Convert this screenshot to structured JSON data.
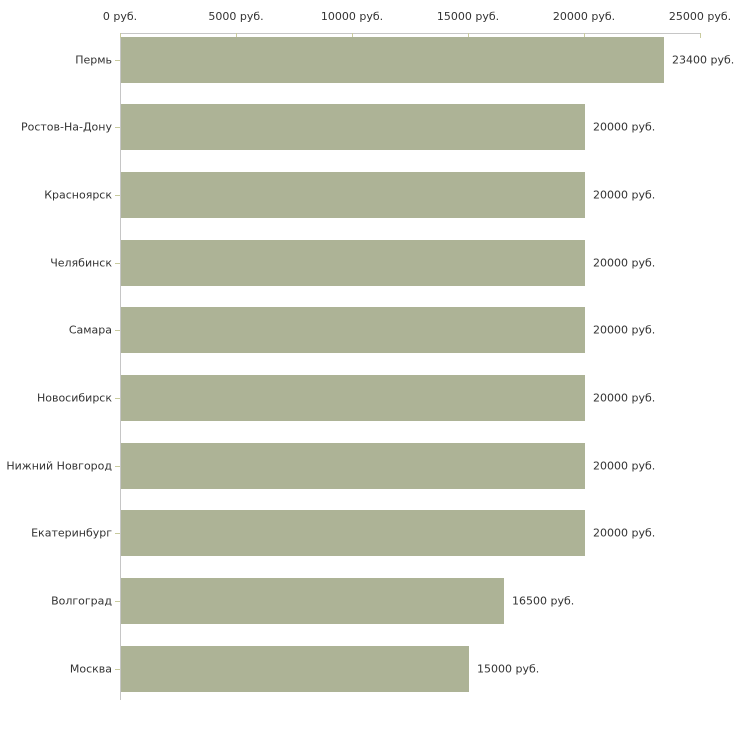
{
  "chart_data": {
    "type": "bar",
    "orientation": "horizontal",
    "title": "",
    "xlabel": "",
    "ylabel": "",
    "unit": "руб.",
    "categories": [
      "Пермь",
      "Ростов-На-Дону",
      "Красноярск",
      "Челябинск",
      "Самара",
      "Новосибирск",
      "Нижний Новгород",
      "Екатеринбург",
      "Волгоград",
      "Москва"
    ],
    "values": [
      23400,
      20000,
      20000,
      20000,
      20000,
      20000,
      20000,
      20000,
      16500,
      15000
    ],
    "value_labels": [
      "23400 руб.",
      "20000 руб.",
      "20000 руб.",
      "20000 руб.",
      "20000 руб.",
      "20000 руб.",
      "20000 руб.",
      "20000 руб.",
      "16500 руб.",
      "15000 руб."
    ],
    "x_axis": {
      "position": "top",
      "min": 0,
      "max": 25000,
      "ticks": [
        0,
        5000,
        10000,
        15000,
        20000,
        25000
      ],
      "tick_labels": [
        "0 руб.",
        "5000 руб.",
        "10000 руб.",
        "15000 руб.",
        "20000 руб.",
        "25000 руб."
      ]
    },
    "grid": false,
    "legend": false,
    "colors": {
      "bar": "#adb396",
      "axis_line": "#c6c6c6",
      "tick": "#c9cb9e",
      "text": "#333333",
      "background": "#ffffff"
    }
  }
}
